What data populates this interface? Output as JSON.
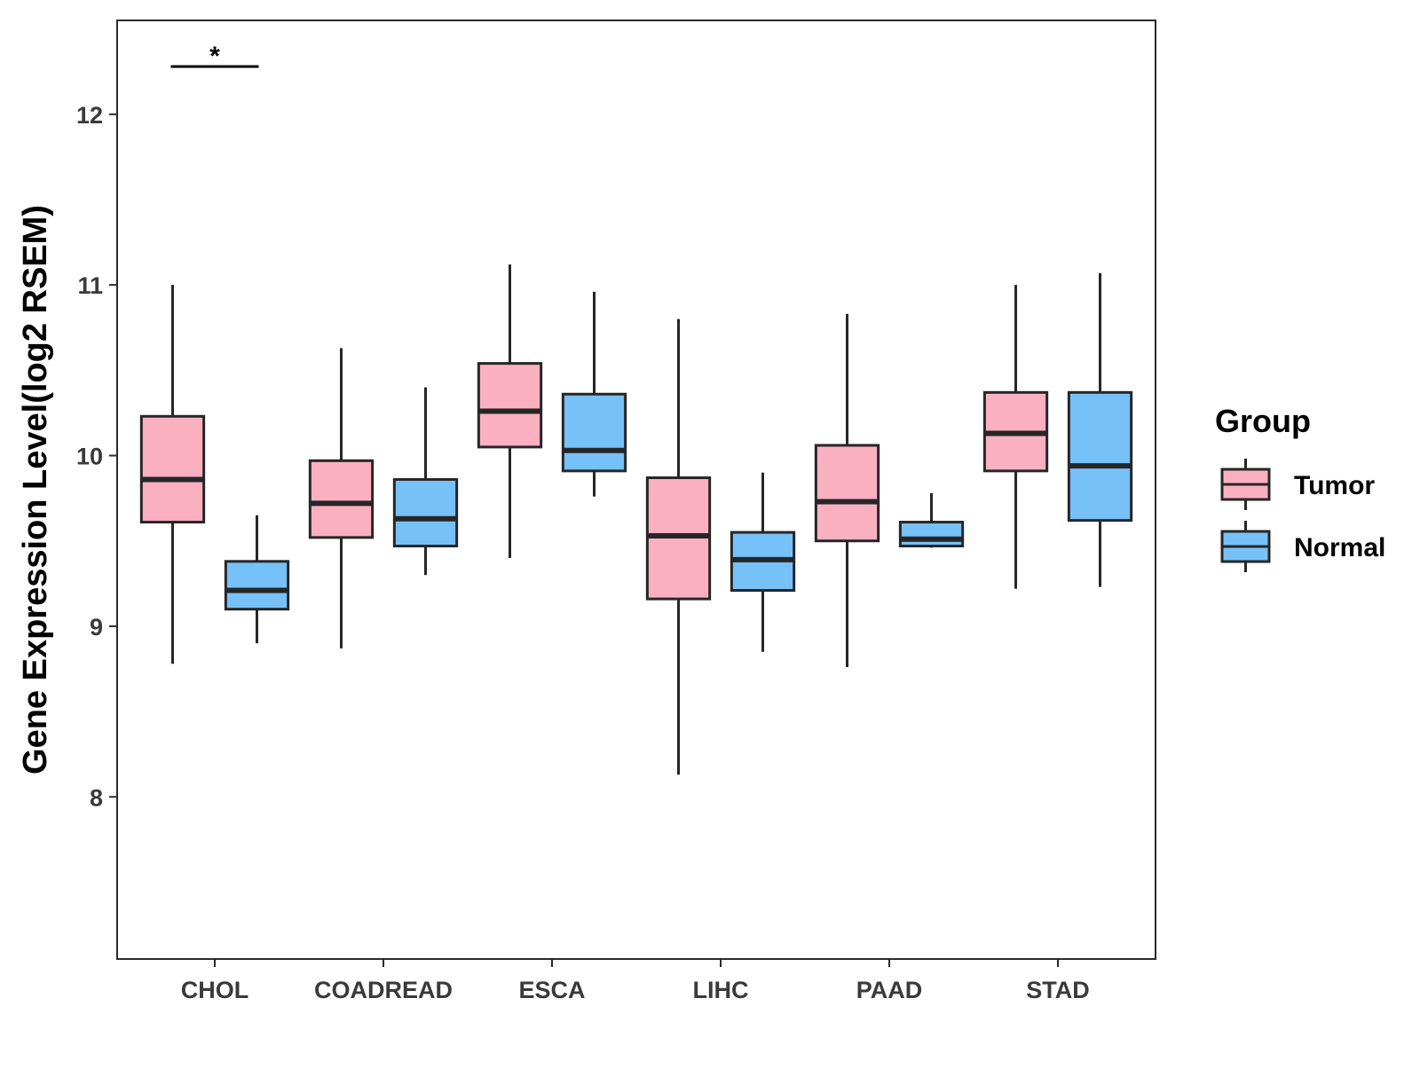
{
  "chart_data": {
    "type": "boxplot",
    "ylabel": "Gene Expression Level(log2 RSEM)",
    "xlabel": "",
    "ylim": [
      7.05,
      12.55
    ],
    "yticks": [
      8,
      9,
      10,
      11,
      12
    ],
    "categories": [
      "CHOL",
      "COADREAD",
      "ESCA",
      "LIHC",
      "PAAD",
      "STAD"
    ],
    "legend": {
      "title": "Group",
      "position": "right",
      "entries": [
        {
          "name": "Tumor",
          "color": "#FBB0C1"
        },
        {
          "name": "Normal",
          "color": "#76C1F7"
        }
      ]
    },
    "series": [
      {
        "name": "Tumor",
        "color": "#FBB0C1",
        "boxes": [
          {
            "category": "CHOL",
            "min": 8.78,
            "q1": 9.61,
            "median": 9.86,
            "q3": 10.23,
            "max": 11.0
          },
          {
            "category": "COADREAD",
            "min": 8.87,
            "q1": 9.52,
            "median": 9.72,
            "q3": 9.97,
            "max": 10.63
          },
          {
            "category": "ESCA",
            "min": 9.4,
            "q1": 10.05,
            "median": 10.26,
            "q3": 10.54,
            "max": 11.12
          },
          {
            "category": "LIHC",
            "min": 8.13,
            "q1": 9.16,
            "median": 9.53,
            "q3": 9.87,
            "max": 10.8
          },
          {
            "category": "PAAD",
            "min": 8.76,
            "q1": 9.5,
            "median": 9.73,
            "q3": 10.06,
            "max": 10.83
          },
          {
            "category": "STAD",
            "min": 9.22,
            "q1": 9.91,
            "median": 10.13,
            "q3": 10.37,
            "max": 11.0
          }
        ]
      },
      {
        "name": "Normal",
        "color": "#76C1F7",
        "boxes": [
          {
            "category": "CHOL",
            "min": 8.9,
            "q1": 9.1,
            "median": 9.21,
            "q3": 9.38,
            "max": 9.65
          },
          {
            "category": "COADREAD",
            "min": 9.3,
            "q1": 9.47,
            "median": 9.63,
            "q3": 9.86,
            "max": 10.4
          },
          {
            "category": "ESCA",
            "min": 9.76,
            "q1": 9.91,
            "median": 10.03,
            "q3": 10.36,
            "max": 10.96
          },
          {
            "category": "LIHC",
            "min": 8.85,
            "q1": 9.21,
            "median": 9.39,
            "q3": 9.55,
            "max": 9.9
          },
          {
            "category": "PAAD",
            "min": 9.46,
            "q1": 9.47,
            "median": 9.51,
            "q3": 9.61,
            "max": 9.78
          },
          {
            "category": "STAD",
            "min": 9.23,
            "q1": 9.62,
            "median": 9.94,
            "q3": 10.37,
            "max": 11.07
          }
        ]
      }
    ],
    "annotations": [
      {
        "category": "CHOL",
        "text": "*",
        "y": 12.28
      }
    ]
  }
}
